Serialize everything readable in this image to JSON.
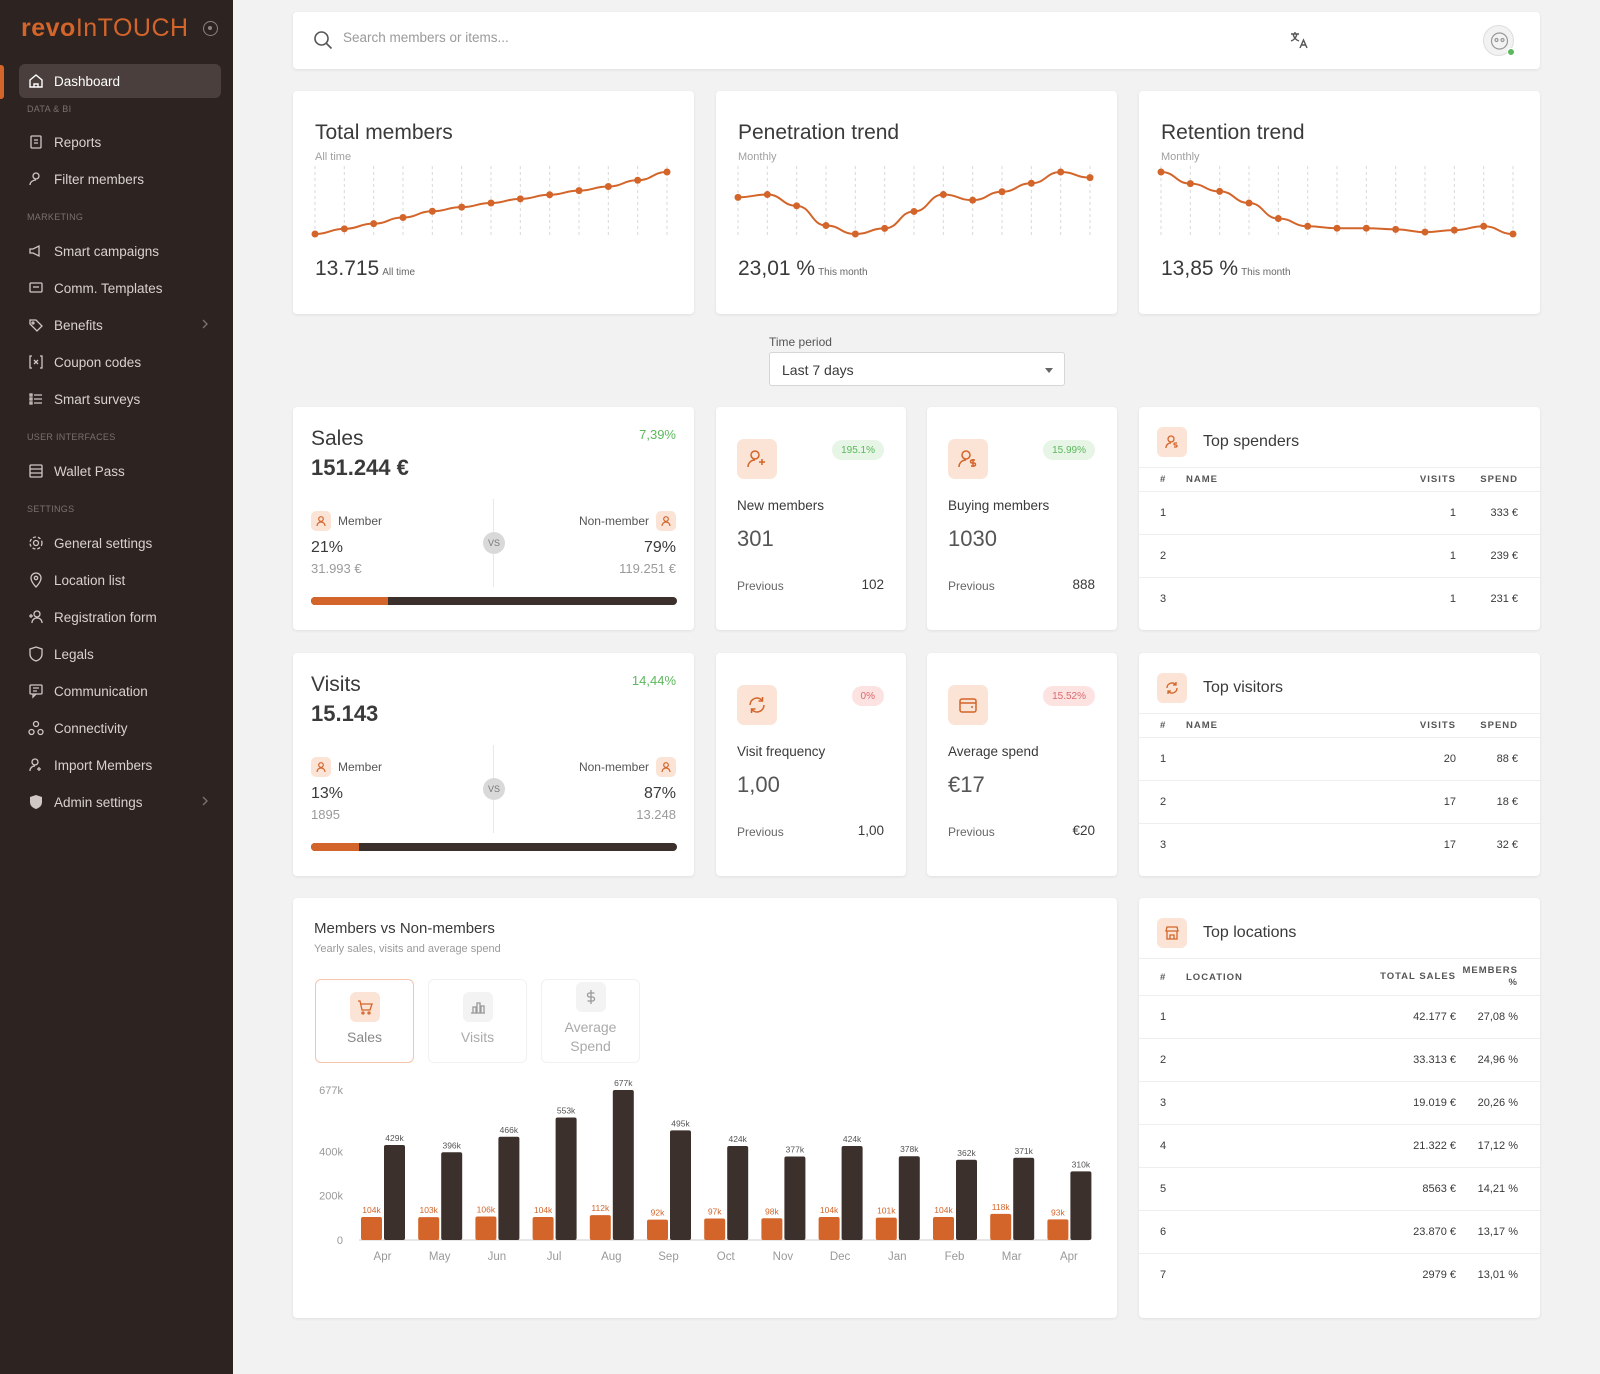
{
  "app": {
    "brand_part1": "revo",
    "brand_part2": "InTOUCH",
    "accent": "#d3652a",
    "sidebar_bg": "#2d2321"
  },
  "sidebar": {
    "dashboard": "Dashboard",
    "sections": {
      "data": "DATA & BI",
      "marketing": "MARKETING",
      "ui": "USER INTERFACES",
      "settings": "SETTINGS"
    },
    "items": {
      "reports": "Reports",
      "filter": "Filter members",
      "campaigns": "Smart campaigns",
      "templates": "Comm. Templates",
      "benefits": "Benefits",
      "coupons": "Coupon codes",
      "surveys": "Smart surveys",
      "wallet": "Wallet Pass",
      "general": "General settings",
      "location": "Location list",
      "registration": "Registration form",
      "legals": "Legals",
      "communication": "Communication",
      "connectivity": "Connectivity",
      "import": "Import Members",
      "admin": "Admin settings"
    }
  },
  "search": {
    "placeholder": "Search members or items..."
  },
  "trends": {
    "total": {
      "title": "Total members",
      "subtitle": "All time",
      "value": "13.715",
      "unit": "All time",
      "points": [
        0,
        5,
        10,
        16,
        22,
        26,
        30,
        34,
        38,
        42,
        46,
        52,
        60
      ]
    },
    "penetration": {
      "title": "Penetration trend",
      "subtitle": "Monthly",
      "value": "23,01 %",
      "unit": "This month",
      "points": [
        22.5,
        23,
        21,
        17.5,
        16,
        17,
        20,
        23,
        22,
        23.5,
        25,
        27,
        26
      ]
    },
    "retention": {
      "title": "Retention trend",
      "subtitle": "Monthly",
      "value": "13,85 %",
      "unit": "This month",
      "points": [
        30,
        27,
        25,
        22,
        18,
        16,
        15.5,
        15.5,
        15.2,
        14.5,
        15,
        16,
        14
      ]
    }
  },
  "period": {
    "label": "Time period",
    "value": "Last 7 days"
  },
  "sales": {
    "title": "Sales",
    "value": "151.244 €",
    "change": "7,39%",
    "member_label": "Member",
    "nonmember_label": "Non-member",
    "vs": "VS",
    "member_pct": "21%",
    "member_amt": "31.993 €",
    "nonmember_pct": "79%",
    "nonmember_amt": "119.251 €",
    "member_share": 21
  },
  "visits": {
    "title": "Visits",
    "value": "15.143",
    "change": "14,44%",
    "member_label": "Member",
    "nonmember_label": "Non-member",
    "vs": "VS",
    "member_pct": "13%",
    "member_amt": "1895",
    "nonmember_pct": "87%",
    "nonmember_amt": "13.248",
    "member_share": 13
  },
  "kpis": {
    "new": {
      "label": "New members",
      "value": "301",
      "badge": "195.1%",
      "prev_label": "Previous",
      "prev": "102"
    },
    "buying": {
      "label": "Buying members",
      "value": "1030",
      "badge": "15.99%",
      "prev_label": "Previous",
      "prev": "888"
    },
    "freq": {
      "label": "Visit frequency",
      "value": "1,00",
      "badge": "0%",
      "prev_label": "Previous",
      "prev": "1,00"
    },
    "spend": {
      "label": "Average spend",
      "value": "€17",
      "badge": "15.52%",
      "prev_label": "Previous",
      "prev": "€20"
    }
  },
  "top_spenders": {
    "title": "Top spenders",
    "cols": [
      "#",
      "NAME",
      "VISITS",
      "SPEND"
    ],
    "rows": [
      [
        "1",
        "",
        "1",
        "333 €"
      ],
      [
        "2",
        "",
        "1",
        "239 €"
      ],
      [
        "3",
        "",
        "1",
        "231 €"
      ]
    ]
  },
  "top_visitors": {
    "title": "Top visitors",
    "cols": [
      "#",
      "NAME",
      "VISITS",
      "SPEND"
    ],
    "rows": [
      [
        "1",
        "",
        "20",
        "88 €"
      ],
      [
        "2",
        "",
        "17",
        "18 €"
      ],
      [
        "3",
        "",
        "17",
        "32 €"
      ]
    ]
  },
  "top_locations": {
    "title": "Top locations",
    "cols": [
      "#",
      "LOCATION",
      "TOTAL SALES",
      "MEMBERS %"
    ],
    "rows": [
      [
        "1",
        "",
        "42.177 €",
        "27,08 %"
      ],
      [
        "2",
        "",
        "33.313 €",
        "24,96 %"
      ],
      [
        "3",
        "",
        "19.019 €",
        "20,26 %"
      ],
      [
        "4",
        "",
        "21.322 €",
        "17,12 %"
      ],
      [
        "5",
        "",
        "8563 €",
        "14,21 %"
      ],
      [
        "6",
        "",
        "23.870 €",
        "13,17 %"
      ],
      [
        "7",
        "",
        "2979 €",
        "13,01 %"
      ]
    ]
  },
  "members_chart": {
    "title": "Members vs Non-members",
    "subtitle": "Yearly sales, visits and average spend",
    "tabs": {
      "sales": "Sales",
      "visits": "Visits",
      "spend_1": "Average",
      "spend_2": "Spend"
    }
  },
  "chart_data": {
    "type": "bar",
    "categories": [
      "Apr",
      "May",
      "Jun",
      "Jul",
      "Aug",
      "Sep",
      "Oct",
      "Nov",
      "Dec",
      "Jan",
      "Feb",
      "Mar",
      "Apr"
    ],
    "series": [
      {
        "values": [
          104,
          103,
          106,
          104,
          112,
          92,
          97,
          98,
          104,
          101,
          104,
          118,
          93
        ],
        "labels": [
          "104k",
          "103k",
          "106k",
          "104k",
          "112k",
          "92k",
          "97k",
          "98k",
          "104k",
          "101k",
          "104k",
          "118k",
          "93k"
        ],
        "color": "#d3652a"
      },
      {
        "values": [
          429,
          396,
          466,
          553,
          677,
          495,
          424,
          377,
          424,
          378,
          362,
          371,
          310
        ],
        "labels": [
          "429k",
          "396k",
          "466k",
          "553k",
          "677k",
          "495k",
          "424k",
          "377k",
          "424k",
          "378k",
          "362k",
          "371k",
          "310k"
        ],
        "color": "#3c302c"
      }
    ],
    "yticks": [
      {
        "v": 0,
        "label": "0"
      },
      {
        "v": 200,
        "label": "200k"
      },
      {
        "v": 400,
        "label": "400k"
      },
      {
        "v": 677,
        "label": "677k"
      }
    ],
    "ylim": [
      0,
      677
    ]
  }
}
